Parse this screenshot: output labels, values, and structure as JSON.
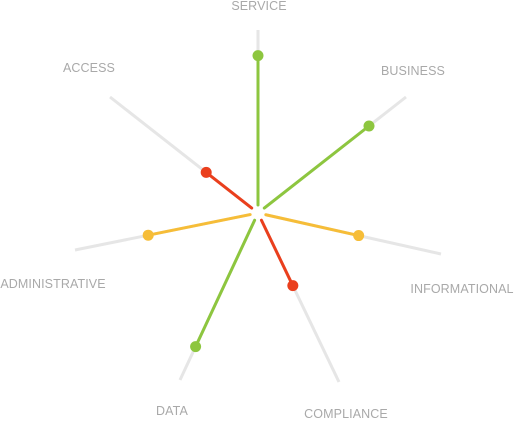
{
  "axes": [
    {
      "key": "service",
      "label": "SERVICE",
      "value": 0.86,
      "color": "#8dc63f"
    },
    {
      "key": "business",
      "label": "BUSINESS",
      "value": 0.75,
      "color": "#8dc63f"
    },
    {
      "key": "informational",
      "label": "INFORMATIONAL",
      "value": 0.55,
      "color": "#f6bd38"
    },
    {
      "key": "compliance",
      "label": "COMPLIANCE",
      "value": 0.43,
      "color": "#ea3f1d"
    },
    {
      "key": "data",
      "label": "DATA",
      "value": 0.8,
      "color": "#8dc63f"
    },
    {
      "key": "administrative",
      "label": "ADMINISTRATIVE",
      "value": 0.6,
      "color": "#f6bd38"
    },
    {
      "key": "access",
      "label": "ACCESS",
      "value": 0.35,
      "color": "#ea3f1d"
    }
  ],
  "colors": {
    "spoke": "#e6e6e6",
    "label": "#a9a9a9",
    "high": "#8dc63f",
    "medium": "#f6bd38",
    "low": "#ea3f1d"
  }
}
